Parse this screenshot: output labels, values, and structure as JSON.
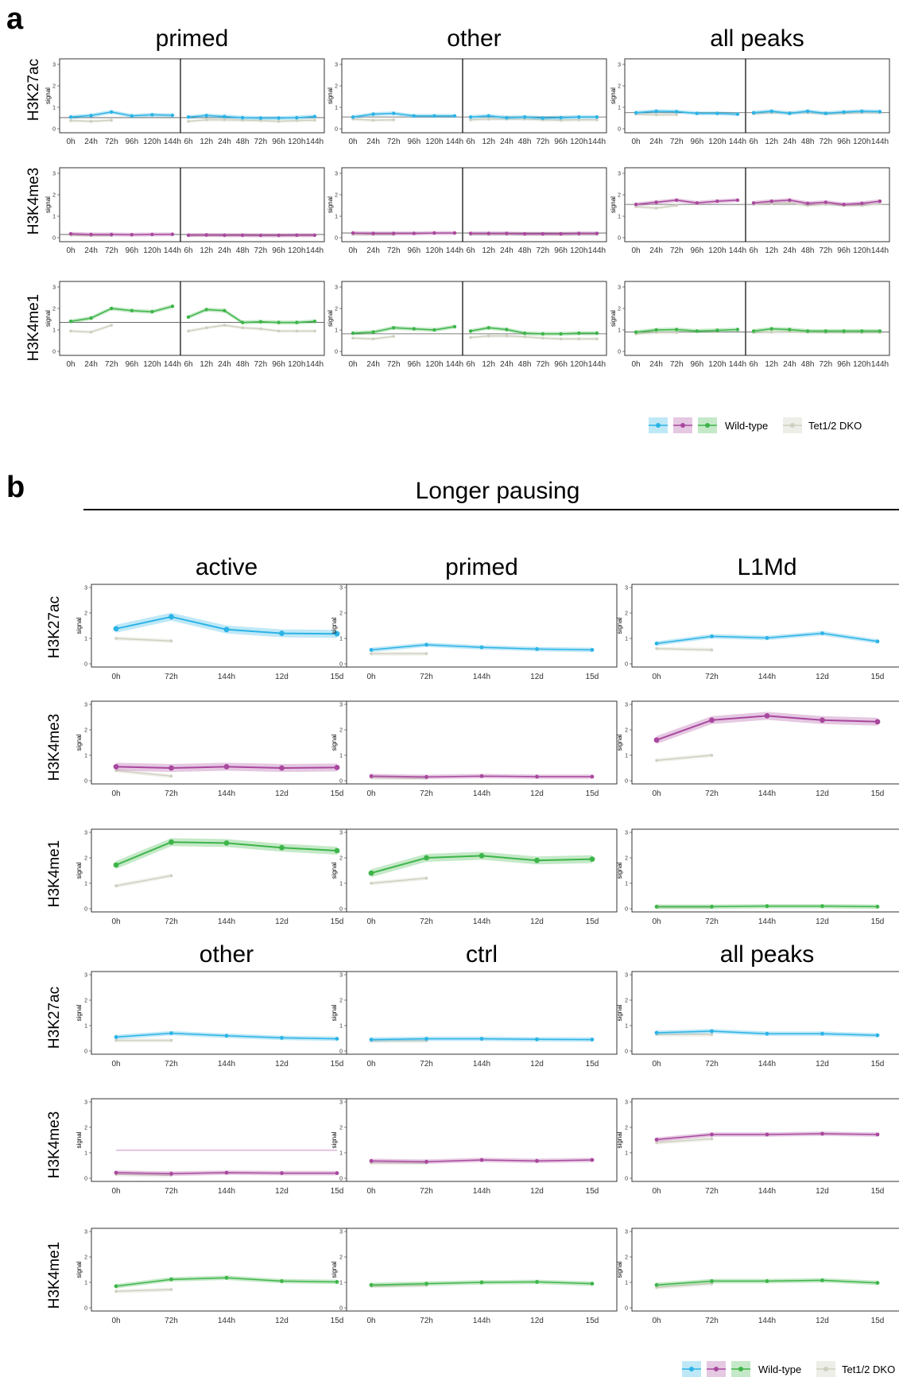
{
  "panel_labels": [
    "a",
    "b"
  ],
  "section_b_header": "Longer pausing",
  "legend": {
    "wild_type": "Wild-type",
    "dko": "Tet1/2 DKO",
    "colors": {
      "H3K27ac": "#2bb3e6",
      "H3K4me3": "#a9489e",
      "H3K4me1": "#3eb54a",
      "dko": "#cfcfc0"
    }
  },
  "colors": {
    "H3K27ac": "#2bb3e6",
    "H3K4me3": "#a9489e",
    "H3K4me1": "#3eb54a",
    "dko": "#cfcfc0",
    "hline": "#555555"
  },
  "chart_data": {
    "panel_a": {
      "type": "line",
      "marks": [
        "H3K27ac",
        "H3K4me3",
        "H3K4me1"
      ],
      "columns": [
        "primed",
        "other",
        "all peaks"
      ],
      "ylabel": "signal",
      "ylim": [
        0,
        3
      ],
      "yticks": [
        0,
        1,
        2,
        3
      ],
      "x_left": [
        "0h",
        "24h",
        "72h",
        "96h",
        "120h",
        "144h"
      ],
      "x_right": [
        "6h",
        "12h",
        "24h",
        "48h",
        "72h",
        "96h",
        "120h",
        "144h"
      ],
      "data": {
        "primed": {
          "H3K27ac": {
            "hline": 0.52,
            "wt_left": [
              0.55,
              0.62,
              0.78,
              0.6,
              0.65,
              0.63
            ],
            "wt_right": [
              0.55,
              0.62,
              0.57,
              0.52,
              0.5,
              0.5,
              0.52,
              0.57
            ],
            "dko_left": [
              0.38,
              0.35,
              0.4
            ],
            "dko_right": [
              0.35,
              0.42,
              0.42,
              0.4,
              0.38,
              0.35,
              0.38,
              0.4
            ]
          },
          "H3K4me3": {
            "hline": 0.15,
            "wt_left": [
              0.18,
              0.15,
              0.15,
              0.14,
              0.15,
              0.16
            ],
            "wt_right": [
              0.12,
              0.13,
              0.12,
              0.12,
              0.11,
              0.11,
              0.12,
              0.12
            ],
            "dko_left": [
              0.12,
              0.1,
              0.1
            ],
            "dko_right": [
              0.1,
              0.1,
              0.1,
              0.1,
              0.1,
              0.1,
              0.1,
              0.1
            ]
          },
          "H3K4me1": {
            "hline": 1.35,
            "wt_left": [
              1.4,
              1.55,
              2.0,
              1.9,
              1.85,
              2.1
            ],
            "wt_right": [
              1.6,
              1.95,
              1.9,
              1.35,
              1.38,
              1.35,
              1.35,
              1.4
            ],
            "dko_left": [
              0.95,
              0.9,
              1.22
            ],
            "dko_right": [
              0.95,
              1.1,
              1.22,
              1.1,
              1.05,
              0.95,
              0.95,
              0.95
            ]
          }
        },
        "other": {
          "H3K27ac": {
            "hline": 0.55,
            "wt_left": [
              0.55,
              0.68,
              0.72,
              0.6,
              0.6,
              0.6
            ],
            "wt_right": [
              0.55,
              0.6,
              0.52,
              0.55,
              0.5,
              0.52,
              0.55,
              0.55
            ],
            "dko_left": [
              0.45,
              0.4,
              0.42
            ],
            "dko_right": [
              0.42,
              0.45,
              0.45,
              0.45,
              0.42,
              0.4,
              0.42,
              0.42
            ]
          },
          "H3K4me3": {
            "hline": 0.22,
            "wt_left": [
              0.22,
              0.2,
              0.2,
              0.2,
              0.22,
              0.22
            ],
            "wt_right": [
              0.2,
              0.2,
              0.2,
              0.18,
              0.18,
              0.18,
              0.2,
              0.2
            ],
            "dko_left": [
              0.15,
              0.15,
              0.15
            ],
            "dko_right": [
              0.15,
              0.15,
              0.15,
              0.15,
              0.15,
              0.15,
              0.15,
              0.15
            ]
          },
          "H3K4me1": {
            "hline": 0.82,
            "wt_left": [
              0.85,
              0.9,
              1.1,
              1.05,
              1.0,
              1.15
            ],
            "wt_right": [
              0.95,
              1.1,
              1.02,
              0.85,
              0.82,
              0.82,
              0.85,
              0.85
            ],
            "dko_left": [
              0.62,
              0.58,
              0.7
            ],
            "dko_right": [
              0.65,
              0.72,
              0.72,
              0.68,
              0.62,
              0.58,
              0.58,
              0.58
            ]
          }
        },
        "all peaks": {
          "H3K27ac": {
            "hline": 0.75,
            "wt_left": [
              0.75,
              0.82,
              0.8,
              0.72,
              0.72,
              0.68
            ],
            "wt_right": [
              0.75,
              0.82,
              0.72,
              0.82,
              0.72,
              0.78,
              0.82,
              0.8
            ],
            "dko_left": [
              0.68,
              0.65,
              0.65
            ],
            "dko_right": [
              0.7,
              0.75,
              0.75,
              0.75,
              0.7,
              0.72,
              0.75,
              0.75
            ]
          },
          "H3K4me3": {
            "hline": 1.55,
            "wt_left": [
              1.55,
              1.65,
              1.75,
              1.62,
              1.7,
              1.75
            ],
            "wt_right": [
              1.62,
              1.7,
              1.75,
              1.6,
              1.65,
              1.55,
              1.6,
              1.7
            ],
            "dko_left": [
              1.45,
              1.38,
              1.5
            ],
            "dko_right": [
              1.55,
              1.6,
              1.62,
              1.5,
              1.55,
              1.5,
              1.5,
              1.58
            ]
          },
          "H3K4me1": {
            "hline": 0.9,
            "wt_left": [
              0.9,
              1.0,
              1.02,
              0.95,
              0.98,
              1.02
            ],
            "wt_right": [
              0.95,
              1.05,
              1.02,
              0.95,
              0.95,
              0.95,
              0.95,
              0.95
            ],
            "dko_left": [
              0.82,
              0.88,
              0.88
            ],
            "dko_right": [
              0.88,
              0.9,
              0.92,
              0.9,
              0.88,
              0.88,
              0.88,
              0.88
            ]
          }
        }
      }
    },
    "panel_b": {
      "type": "line",
      "marks": [
        "H3K27ac",
        "H3K4me3",
        "H3K4me1"
      ],
      "x": [
        "0h",
        "72h",
        "144h",
        "12d",
        "15d"
      ],
      "ylabel": "signal",
      "ylim": [
        0,
        3
      ],
      "yticks": [
        0,
        1,
        2,
        3
      ],
      "groups": [
        {
          "columns": [
            "active",
            "primed",
            "L1Md"
          ]
        },
        {
          "columns": [
            "other",
            "ctrl",
            "all peaks"
          ]
        }
      ],
      "data": {
        "active": {
          "H3K27ac": {
            "wt": [
              1.38,
              1.85,
              1.35,
              1.2,
              1.18
            ],
            "dko": [
              1.0,
              0.9
            ]
          },
          "H3K4me3": {
            "wt": [
              0.55,
              0.5,
              0.55,
              0.5,
              0.52
            ],
            "dko": [
              0.4,
              0.18
            ]
          },
          "H3K4me1": {
            "wt": [
              1.72,
              2.62,
              2.58,
              2.4,
              2.28
            ],
            "dko": [
              0.9,
              1.3
            ]
          }
        },
        "primed": {
          "H3K27ac": {
            "wt": [
              0.55,
              0.75,
              0.65,
              0.58,
              0.55
            ],
            "dko": [
              0.4,
              0.4
            ]
          },
          "H3K4me3": {
            "wt": [
              0.18,
              0.15,
              0.18,
              0.16,
              0.16
            ],
            "dko": [
              0.12,
              0.1
            ]
          },
          "H3K4me1": {
            "wt": [
              1.4,
              2.0,
              2.08,
              1.9,
              1.95
            ],
            "dko": [
              1.0,
              1.2
            ]
          }
        },
        "L1Md": {
          "H3K27ac": {
            "wt": [
              0.8,
              1.08,
              1.02,
              1.2,
              0.88
            ],
            "dko": [
              0.6,
              0.55
            ]
          },
          "H3K4me3": {
            "wt": [
              1.6,
              2.38,
              2.55,
              2.38,
              2.32
            ],
            "dko": [
              0.8,
              1.0
            ]
          },
          "H3K4me1": {
            "wt": [
              0.08,
              0.08,
              0.1,
              0.1,
              0.08
            ],
            "dko": [
              0.06,
              0.06
            ]
          }
        },
        "other": {
          "H3K27ac": {
            "wt": [
              0.55,
              0.7,
              0.6,
              0.52,
              0.48
            ],
            "dko": [
              0.42,
              0.42
            ]
          },
          "H3K4me3": {
            "wt": [
              0.22,
              0.18,
              0.22,
              0.2,
              0.2
            ],
            "dko": [
              0.15,
              0.12
            ],
            "extra_line": 1.1
          },
          "H3K4me1": {
            "wt": [
              0.85,
              1.12,
              1.18,
              1.05,
              1.02
            ],
            "dko": [
              0.65,
              0.72
            ]
          }
        },
        "ctrl": {
          "H3K27ac": {
            "wt": [
              0.45,
              0.48,
              0.48,
              0.46,
              0.45
            ],
            "dko": [
              0.4,
              0.4
            ]
          },
          "H3K4me3": {
            "wt": [
              0.68,
              0.65,
              0.72,
              0.68,
              0.72
            ],
            "dko": [
              0.6,
              0.6
            ]
          },
          "H3K4me1": {
            "wt": [
              0.9,
              0.95,
              1.0,
              1.02,
              0.95
            ],
            "dko": [
              0.85,
              0.88
            ]
          }
        },
        "all peaks": {
          "H3K27ac": {
            "wt": [
              0.72,
              0.78,
              0.68,
              0.68,
              0.62
            ],
            "dko": [
              0.65,
              0.65
            ]
          },
          "H3K4me3": {
            "wt": [
              1.52,
              1.72,
              1.72,
              1.75,
              1.72
            ],
            "dko": [
              1.4,
              1.55
            ]
          },
          "H3K4me1": {
            "wt": [
              0.9,
              1.05,
              1.05,
              1.08,
              0.98
            ],
            "dko": [
              0.8,
              0.95
            ]
          }
        }
      }
    }
  }
}
